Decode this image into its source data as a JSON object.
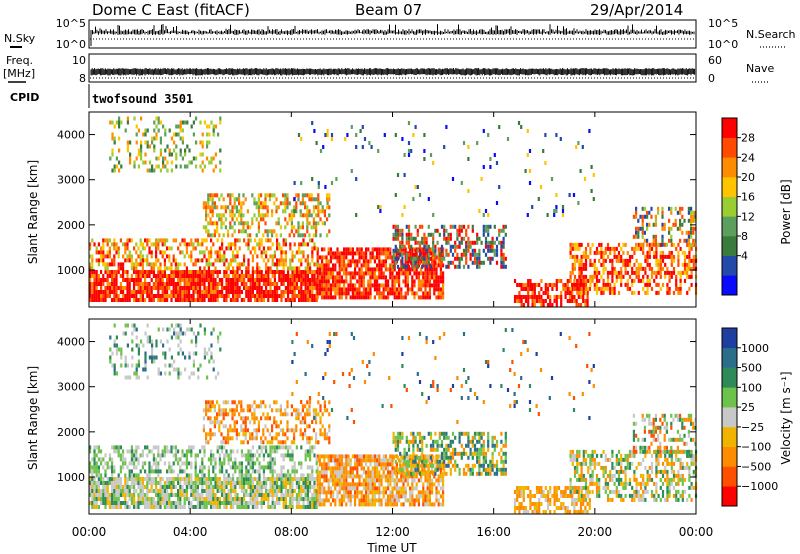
{
  "header": {
    "title": "Dome C East (fitACF)",
    "beam": "Beam 07",
    "date": "29/Apr/2014"
  },
  "status_panels": {
    "sky": {
      "left_label": "N.Sky",
      "right_label": "N.Search",
      "left_ticks": [
        "10^5",
        "10^0"
      ],
      "right_ticks": [
        "10^5",
        "10^0"
      ]
    },
    "freq": {
      "left_label_top": "Freq.",
      "left_label_unit": "[MHz]",
      "right_label": "Nave",
      "left_ticks": [
        "10",
        "8"
      ],
      "right_ticks": [
        "60",
        "0"
      ]
    },
    "cpid": {
      "label": "CPID",
      "program": "twofsound  3501"
    }
  },
  "chart_data": [
    {
      "type": "heatmap",
      "name": "power",
      "ylabel": "Slant Range [km]",
      "xlabel": "",
      "x_ticks": [
        "00:00",
        "04:00",
        "08:00",
        "12:00",
        "16:00",
        "20:00",
        "00:00"
      ],
      "xlim_hours": [
        0,
        24
      ],
      "y_ticks": [
        1000,
        2000,
        3000,
        4000
      ],
      "ylim": [
        180,
        4500
      ],
      "grid": false,
      "colorbar": {
        "label": "Power [dB]",
        "ticks": [
          "28",
          "24",
          "20",
          "16",
          "12",
          "8",
          "4"
        ],
        "colors": [
          "#0a0aff",
          "#234aa8",
          "#3a7a3c",
          "#5c9e5c",
          "#9acd32",
          "#ffc400",
          "#ff8c00",
          "#ff4a00",
          "#ff0000"
        ]
      }
    },
    {
      "type": "heatmap",
      "name": "velocity",
      "ylabel": "Slant Range [km]",
      "xlabel": "Time UT",
      "x_ticks": [
        "00:00",
        "04:00",
        "08:00",
        "12:00",
        "16:00",
        "20:00",
        "00:00"
      ],
      "xlim_hours": [
        0,
        24
      ],
      "y_ticks": [
        1000,
        2000,
        3000,
        4000
      ],
      "ylim": [
        180,
        4500
      ],
      "grid": false,
      "colorbar": {
        "label": "Velocity [m s⁻¹]",
        "ticks": [
          "1000",
          "500",
          "100",
          "25",
          "−25",
          "−100",
          "−500",
          "−1000"
        ],
        "colors": [
          "#1f3fa0",
          "#2a6e8a",
          "#2e8b57",
          "#6cc24a",
          "#c8c8c8",
          "#f0b400",
          "#ff8c00",
          "#ff5000",
          "#ff0000"
        ]
      }
    }
  ]
}
